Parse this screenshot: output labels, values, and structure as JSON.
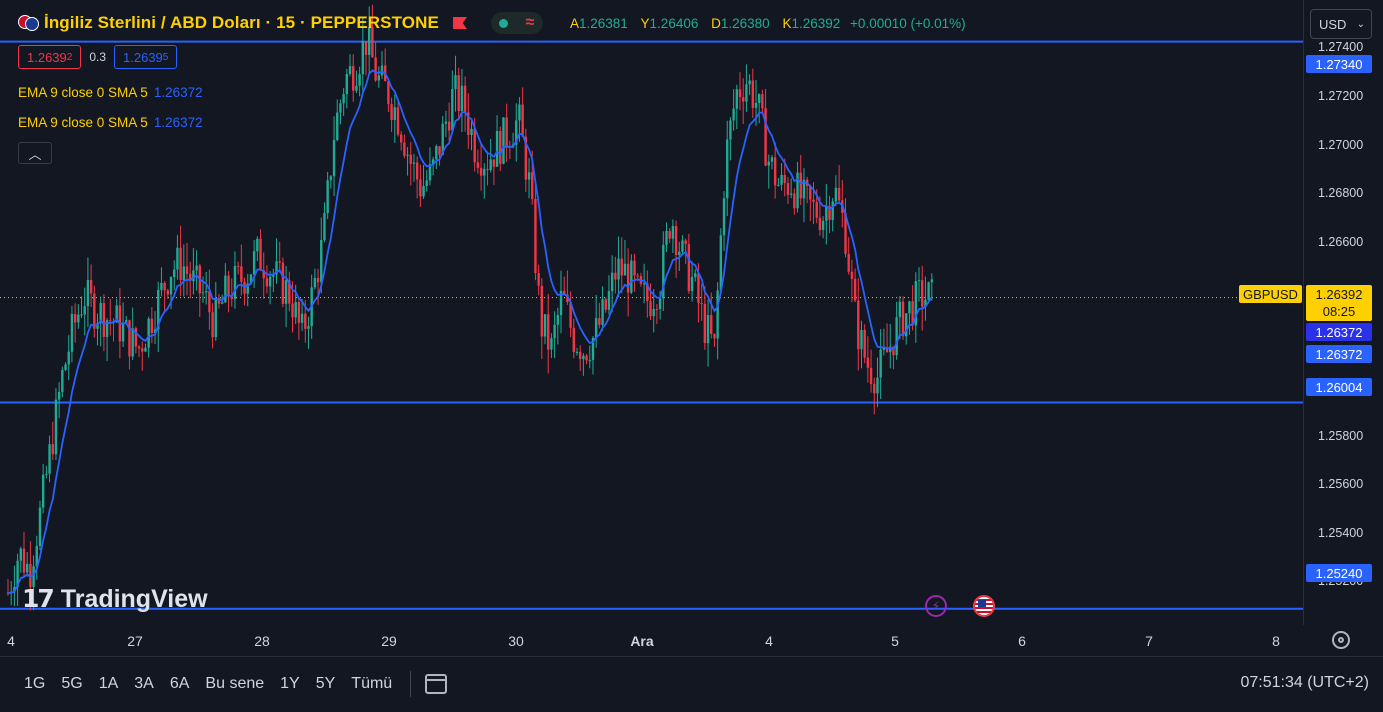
{
  "header": {
    "title": "İngiliz Sterlini / ABD Doları · 15 · PEPPERSTONE",
    "ohlc": [
      {
        "key": "A",
        "value": "1.26381"
      },
      {
        "key": "Y",
        "value": "1.26406"
      },
      {
        "key": "D",
        "value": "1.26380"
      },
      {
        "key": "K",
        "value": "1.26392"
      }
    ],
    "change": "+0.00010 (+0.01%)"
  },
  "trade": {
    "sell_main": "1.2639",
    "sell_sup": "2",
    "spread": "0.3",
    "buy_main": "1.2639",
    "buy_sup": "5"
  },
  "indicators": [
    {
      "label": "EMA 9 close 0 SMA 5",
      "value": "1.26372"
    },
    {
      "label": "EMA 9 close 0 SMA 5",
      "value": "1.26372"
    }
  ],
  "currency_select": "USD",
  "logo": "TradingView",
  "price_axis": {
    "ticks": [
      "1.27400",
      "1.27200",
      "1.27000",
      "1.26800",
      "1.26600",
      "1.25800",
      "1.25600",
      "1.25400",
      "1.25200"
    ],
    "horizontal_lines": [
      "1.27340",
      "1.26004",
      "1.25240"
    ],
    "current_price": "1.26392",
    "countdown": "08:25",
    "ema_values": [
      "1.26372",
      "1.26372"
    ],
    "symbol_tag": "GBPUSD"
  },
  "time_axis": [
    "4",
    "27",
    "28",
    "29",
    "30",
    "Ara",
    "4",
    "5",
    "6",
    "7",
    "8"
  ],
  "ranges": [
    "1G",
    "5G",
    "1A",
    "3A",
    "6A",
    "Bu sene",
    "1Y",
    "5Y",
    "Tümü"
  ],
  "clock": "07:51:34 (UTC+2)",
  "colors": {
    "background": "#131722",
    "up": "#22ab94",
    "down": "#f23645",
    "ema": "#2962ff",
    "accent": "#ffd000"
  },
  "chart_data": {
    "type": "line",
    "series": [
      {
        "values": [
          1.253,
          1.2545,
          1.2538,
          1.256,
          1.2585,
          1.261,
          1.2628,
          1.264,
          1.2635,
          1.2632,
          1.263,
          1.2625,
          1.262,
          1.263,
          1.264,
          1.265,
          1.2652,
          1.2645,
          1.264,
          1.263,
          1.264,
          1.2645,
          1.2648,
          1.2655,
          1.265,
          1.2645,
          1.264,
          1.2625,
          1.264,
          1.266,
          1.27,
          1.272,
          1.2725,
          1.2735,
          1.272,
          1.2715,
          1.2705,
          1.269,
          1.268,
          1.2685,
          1.27,
          1.2715,
          1.271,
          1.2695,
          1.269,
          1.2695,
          1.27,
          1.2705,
          1.268,
          1.263,
          1.262,
          1.264,
          1.2625,
          1.262,
          1.2625,
          1.2635,
          1.265,
          1.2648,
          1.264,
          1.2638,
          1.2645,
          1.267,
          1.2655,
          1.2645,
          1.263,
          1.262,
          1.269,
          1.2715,
          1.272,
          1.271,
          1.269,
          1.268,
          1.2682,
          1.2676,
          1.2672,
          1.267,
          1.268,
          1.2665,
          1.263,
          1.2615,
          1.261,
          1.262,
          1.263,
          1.2635,
          1.264,
          1.2639
        ]
      }
    ],
    "y_range": [
      1.2518,
      1.2742
    ]
  }
}
